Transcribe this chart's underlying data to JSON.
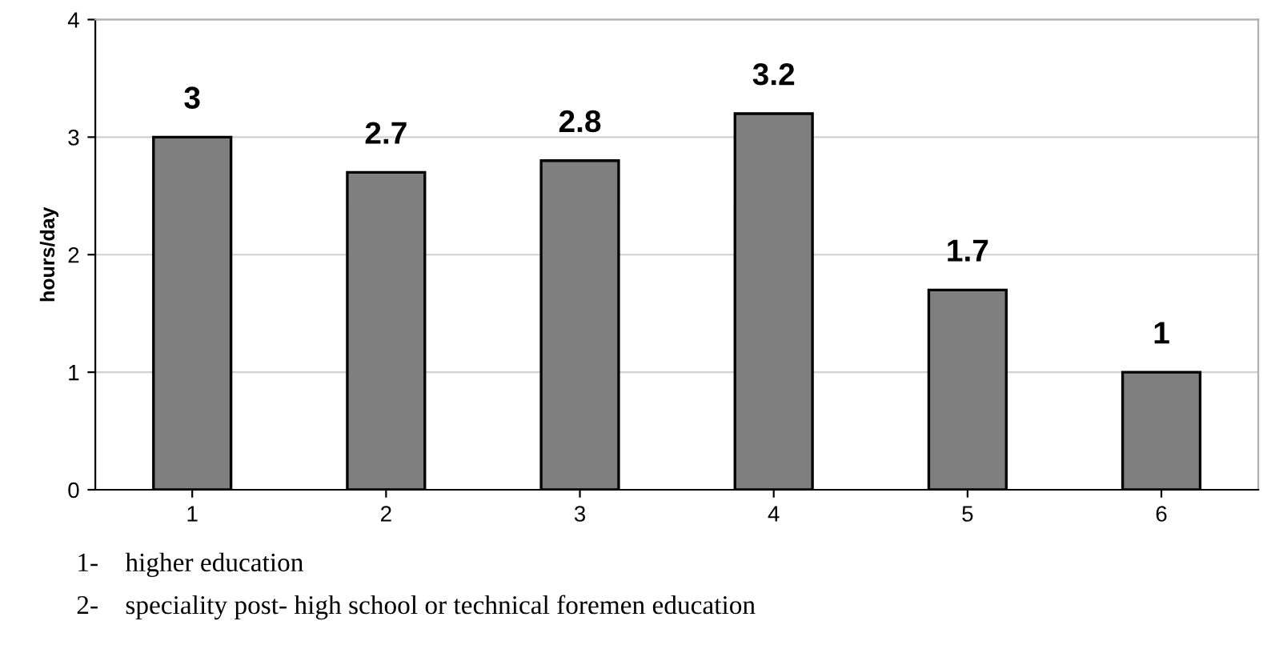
{
  "chart_data": {
    "type": "bar",
    "ylabel": "hours/day",
    "categories": [
      "1",
      "2",
      "3",
      "4",
      "5",
      "6"
    ],
    "values": [
      3,
      2.7,
      2.8,
      3.2,
      1.7,
      1
    ],
    "color": "#7f7f7f",
    "ylim": [
      0,
      4
    ],
    "yticks": [
      0,
      1,
      2,
      3,
      4
    ],
    "grid": "y",
    "data_labels": true,
    "annotations": [
      "1-    higher education",
      "2-    speciality post- high school or technical foremen education"
    ]
  }
}
